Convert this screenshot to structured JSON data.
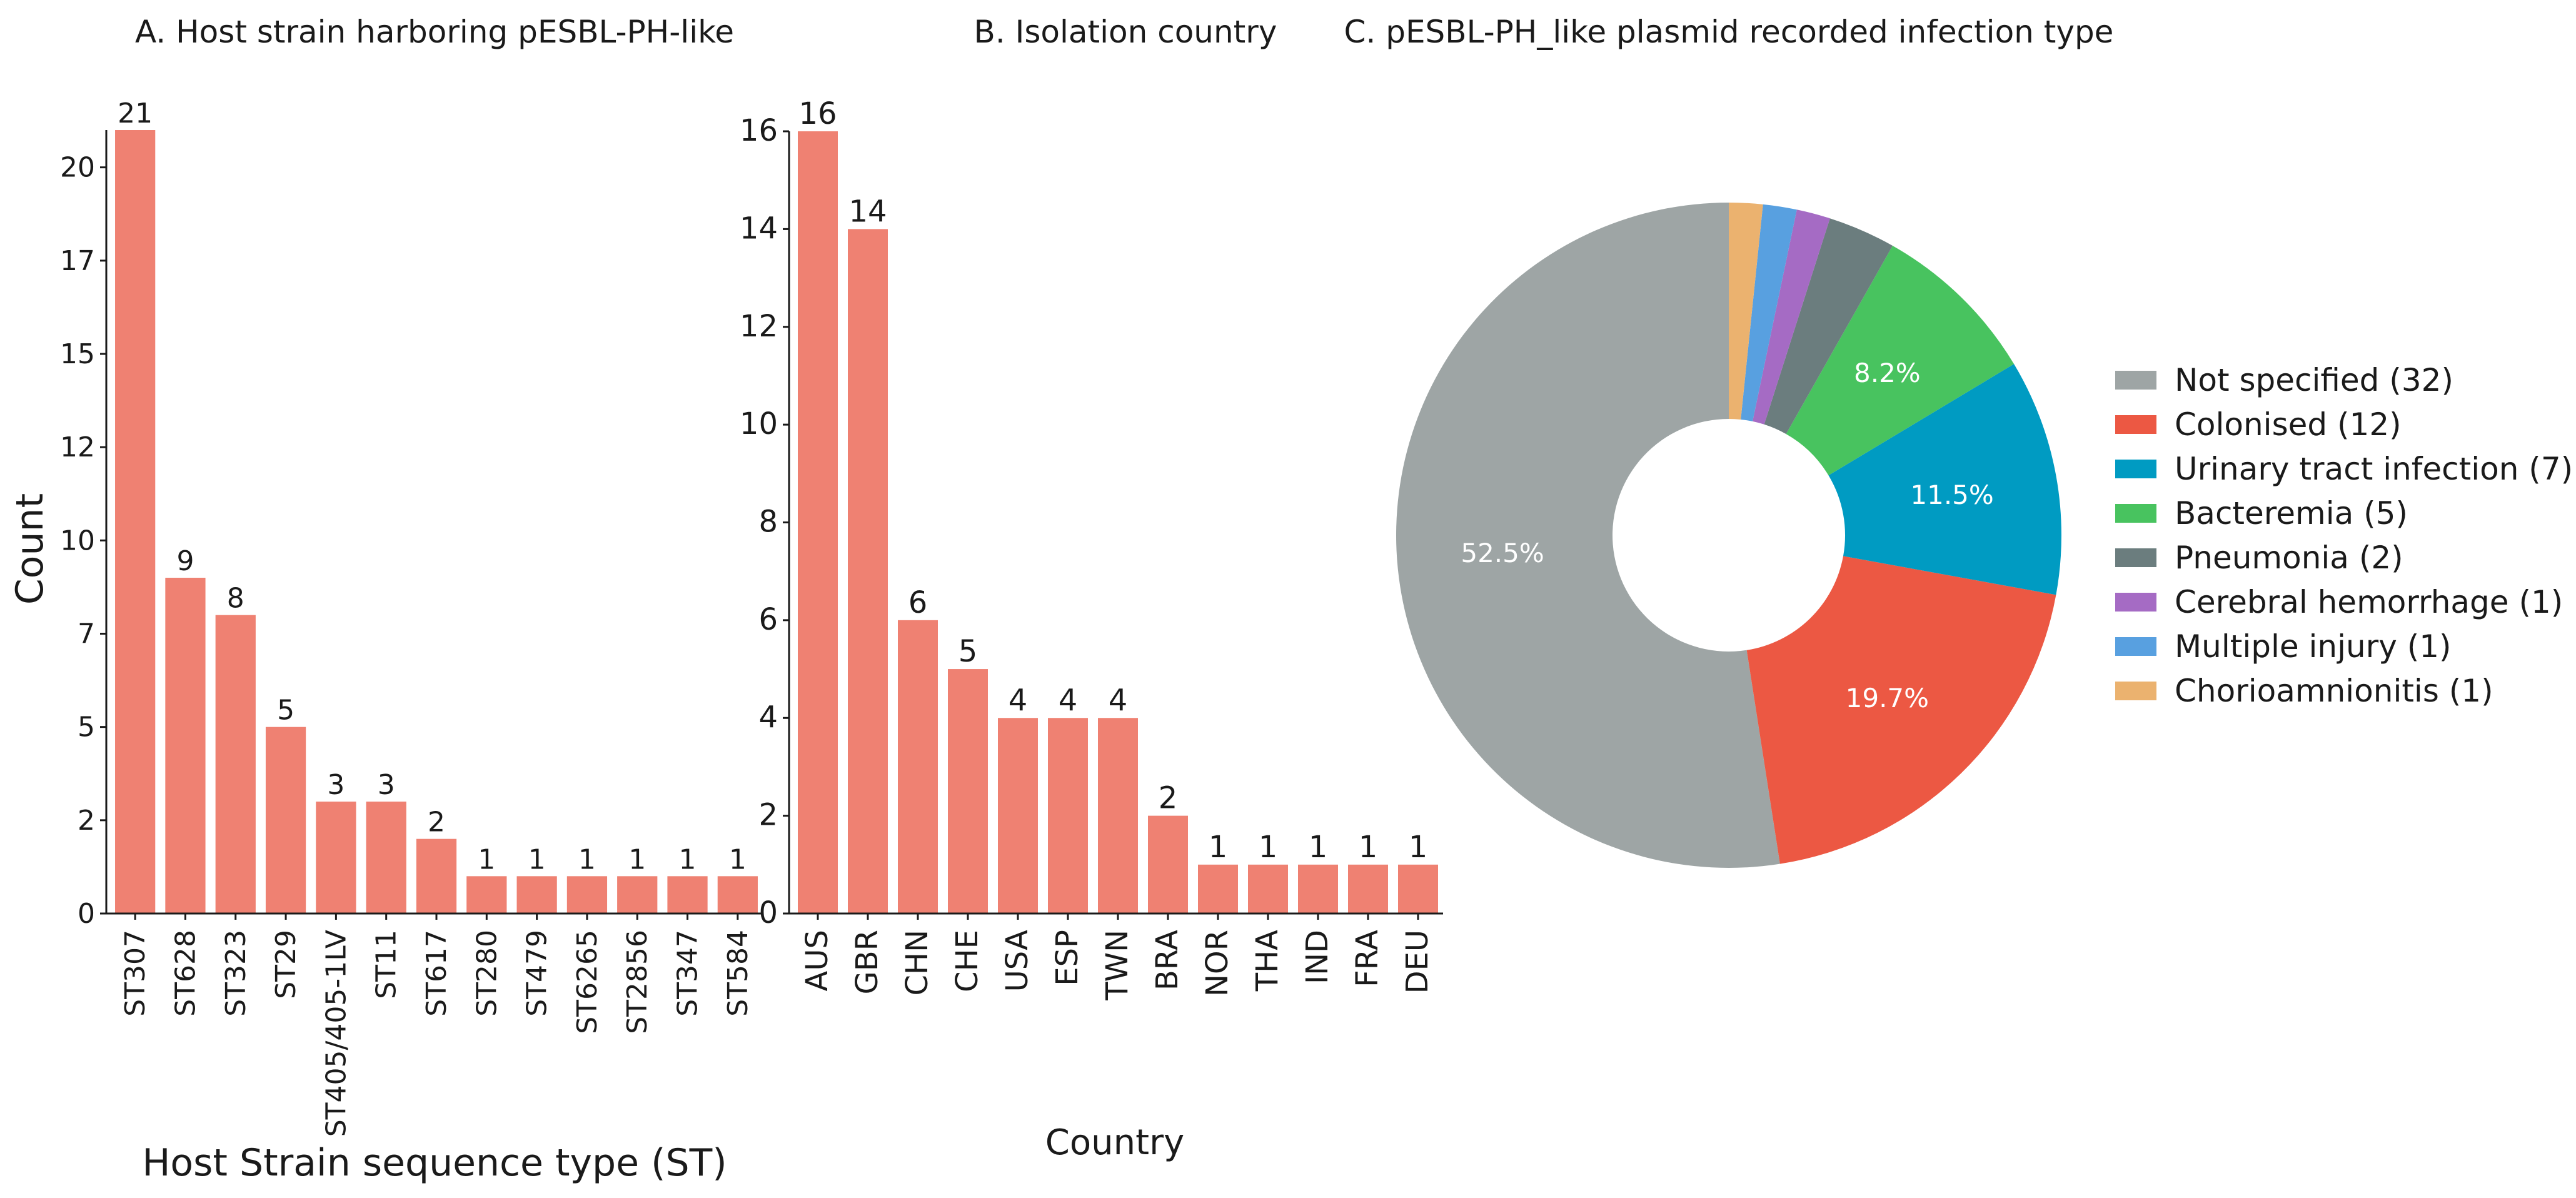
{
  "chart_data": [
    {
      "type": "bar",
      "title": "A. Host strain harboring pESBL-PH-like",
      "xlabel": "Host Strain sequence type (ST)",
      "ylabel": "Count",
      "categories": [
        "ST307",
        "ST628",
        "ST323",
        "ST29",
        "ST405/405-1LV",
        "ST11",
        "ST617",
        "ST280",
        "ST479",
        "ST6265",
        "ST2856",
        "ST347",
        "ST584"
      ],
      "values": [
        21,
        9,
        8,
        5,
        3,
        3,
        2,
        1,
        1,
        1,
        1,
        1,
        1
      ],
      "yticks": [
        "0",
        "2",
        "5",
        "7",
        "10",
        "12",
        "15",
        "17",
        "20"
      ],
      "ylim": [
        0,
        21
      ],
      "color": "#ef8172"
    },
    {
      "type": "bar",
      "title": "B. Isolation country",
      "xlabel": "Country",
      "ylabel": "",
      "categories": [
        "AUS",
        "GBR",
        "CHN",
        "CHE",
        "USA",
        "ESP",
        "TWN",
        "BRA",
        "NOR",
        "THA",
        "IND",
        "FRA",
        "DEU"
      ],
      "values": [
        16,
        14,
        6,
        5,
        4,
        4,
        4,
        2,
        1,
        1,
        1,
        1,
        1
      ],
      "yticks": [
        "0",
        "2",
        "4",
        "6",
        "8",
        "10",
        "12",
        "14",
        "16"
      ],
      "ylim": [
        0,
        16
      ],
      "color": "#ef8172"
    },
    {
      "type": "pie",
      "title": "C. pESBL-PH_like plasmid recorded infection type",
      "labels": [
        "Not specified",
        "Colonised",
        "Urinary tract infection",
        "Bacteremia",
        "Pneumonia",
        "Cerebral hemorrhage",
        "Multiple injury",
        "Chorioamnionitis"
      ],
      "values": [
        32,
        12,
        7,
        5,
        2,
        1,
        1,
        1
      ],
      "legend": [
        "Not specified (32)",
        "Colonised (12)",
        "Urinary tract infection (7)",
        "Bacteremia (5)",
        "Pneumonia (2)",
        "Cerebral hemorrhage (1)",
        "Multiple injury (1)",
        "Chorioamnionitis (1)"
      ],
      "pct_labels": [
        "52.5%",
        "19.7%",
        "11.5%",
        "8.2%",
        "",
        "",
        "",
        ""
      ],
      "colors": [
        "#9ea5a5",
        "#ec5843",
        "#009bc2",
        "#48c35f",
        "#6b7d7e",
        "#a56bc4",
        "#58a0e0",
        "#ebb26f"
      ],
      "legend_position": "right"
    }
  ]
}
